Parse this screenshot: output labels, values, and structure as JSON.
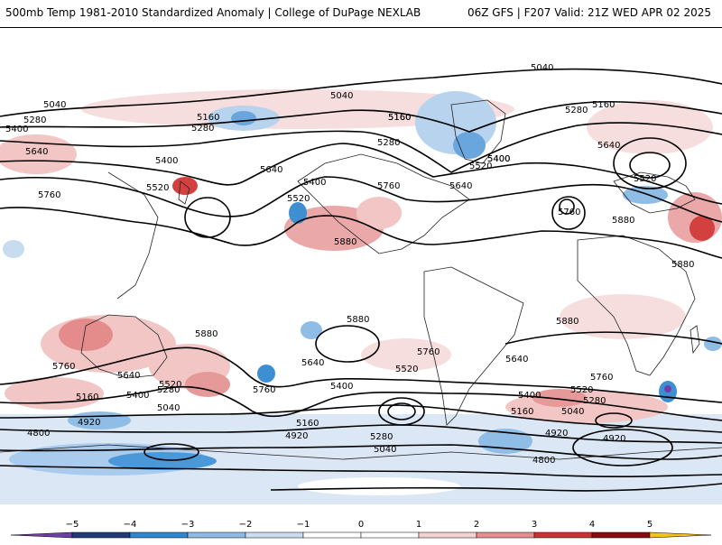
{
  "header": {
    "title": "500mb Temp 1981-2010 Standardized Anomaly | College of DuPage NEXLAB",
    "run_info": "06Z GFS | F207 Valid: 21Z WED APR 02 2025"
  },
  "map": {
    "contour_labels": [
      "5040",
      "5040",
      "5160",
      "5040",
      "5280",
      "5160",
      "5400",
      "5280",
      "5160",
      "5280",
      "5400",
      "5640",
      "5400",
      "5760",
      "5640",
      "5520",
      "5400",
      "5520",
      "5760",
      "5520",
      "5640",
      "5400",
      "5280",
      "5160",
      "5640",
      "5520",
      "5760",
      "5880",
      "5880",
      "5880",
      "5880",
      "5880",
      "5760",
      "5880",
      "5640",
      "5760",
      "5520",
      "5640",
      "5760",
      "5400",
      "5280",
      "5160",
      "5040",
      "5520",
      "5760",
      "5640",
      "5400",
      "5160",
      "5400",
      "5280",
      "5520",
      "5160",
      "5040",
      "4920",
      "4800",
      "4920",
      "5280",
      "5040",
      "4920",
      "4920",
      "4800"
    ],
    "colors": {
      "land_outline": "#000000",
      "contour": "#000000",
      "warm_light": "#f6d4d4",
      "warm_mid": "#eaa0a0",
      "warm_strong": "#d84545",
      "warm_extreme": "#8e1414",
      "cool_light": "#c8dcf0",
      "cool_mid": "#8fbde6",
      "cool_strong": "#3e8fd2",
      "cool_extreme": "#1d3a78"
    }
  },
  "colorbar": {
    "ticks": [
      "−5",
      "−4",
      "−3",
      "−2",
      "−1",
      "0",
      "1",
      "2",
      "3",
      "4",
      "5"
    ],
    "colors": [
      "#6e3fa8",
      "#213b77",
      "#3087cd",
      "#8dbbe6",
      "#c9ddf1",
      "#ffffff",
      "#ffffff",
      "#f5d0d0",
      "#e58f8f",
      "#cc3232",
      "#860d0d",
      "#f5c21b"
    ]
  }
}
